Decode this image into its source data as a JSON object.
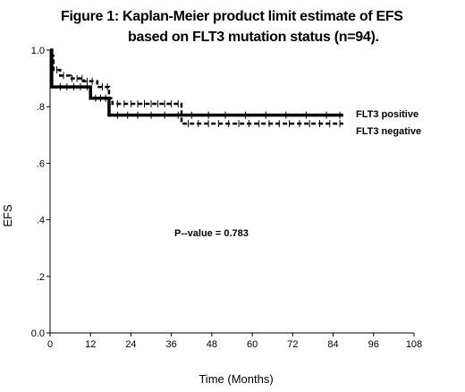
{
  "chart_data": {
    "type": "line",
    "title_line1": "Figure 1: Kaplan-Meier product limit estimate of EFS",
    "title_line2": "based on FLT3 mutation status (n=94).",
    "xlabel": "Time (Months)",
    "ylabel": "EFS",
    "xlim": [
      0,
      108
    ],
    "ylim": [
      0,
      1.0
    ],
    "x_ticks": [
      0,
      12,
      24,
      36,
      48,
      60,
      72,
      84,
      96,
      108
    ],
    "x_tick_labels": [
      "0",
      "12",
      "24",
      "36",
      "48",
      "60",
      "72",
      "84",
      "96",
      "108"
    ],
    "y_ticks": [
      0,
      0.2,
      0.4,
      0.6,
      0.8,
      1.0
    ],
    "y_tick_labels": [
      "0.0",
      ".2",
      ".4",
      ".6",
      ".8",
      "1.0"
    ],
    "grid": false,
    "annotation": "P--value = 0.783",
    "series": [
      {
        "name": "FLT3 positive",
        "line_style": "solid",
        "color": "#000000",
        "step_x": [
          0,
          0.5,
          12,
          17.5,
          87
        ],
        "step_y": [
          1.0,
          0.87,
          0.83,
          0.77,
          0.77
        ],
        "censor_x": [
          3,
          5,
          7,
          9,
          11,
          13.5,
          15,
          16.5,
          20,
          23,
          26,
          30,
          34,
          38,
          42,
          47,
          52,
          58,
          64,
          70,
          76,
          82,
          86
        ]
      },
      {
        "name": "FLT3 negative",
        "line_style": "dashed",
        "color": "#000000",
        "step_x": [
          0,
          1,
          3,
          6,
          10,
          14,
          17.5,
          18.5,
          39,
          87
        ],
        "step_y": [
          0.98,
          0.93,
          0.91,
          0.9,
          0.89,
          0.87,
          0.83,
          0.81,
          0.74,
          0.74
        ],
        "censor_x": [
          2,
          4,
          6.5,
          8,
          9.5,
          11,
          12.5,
          15.5,
          17,
          20,
          22,
          24,
          26,
          28,
          30,
          32,
          34,
          36,
          38,
          41,
          44,
          47,
          50,
          53,
          56,
          59,
          62,
          65,
          68,
          71,
          74,
          77,
          80,
          83,
          86
        ]
      }
    ]
  }
}
